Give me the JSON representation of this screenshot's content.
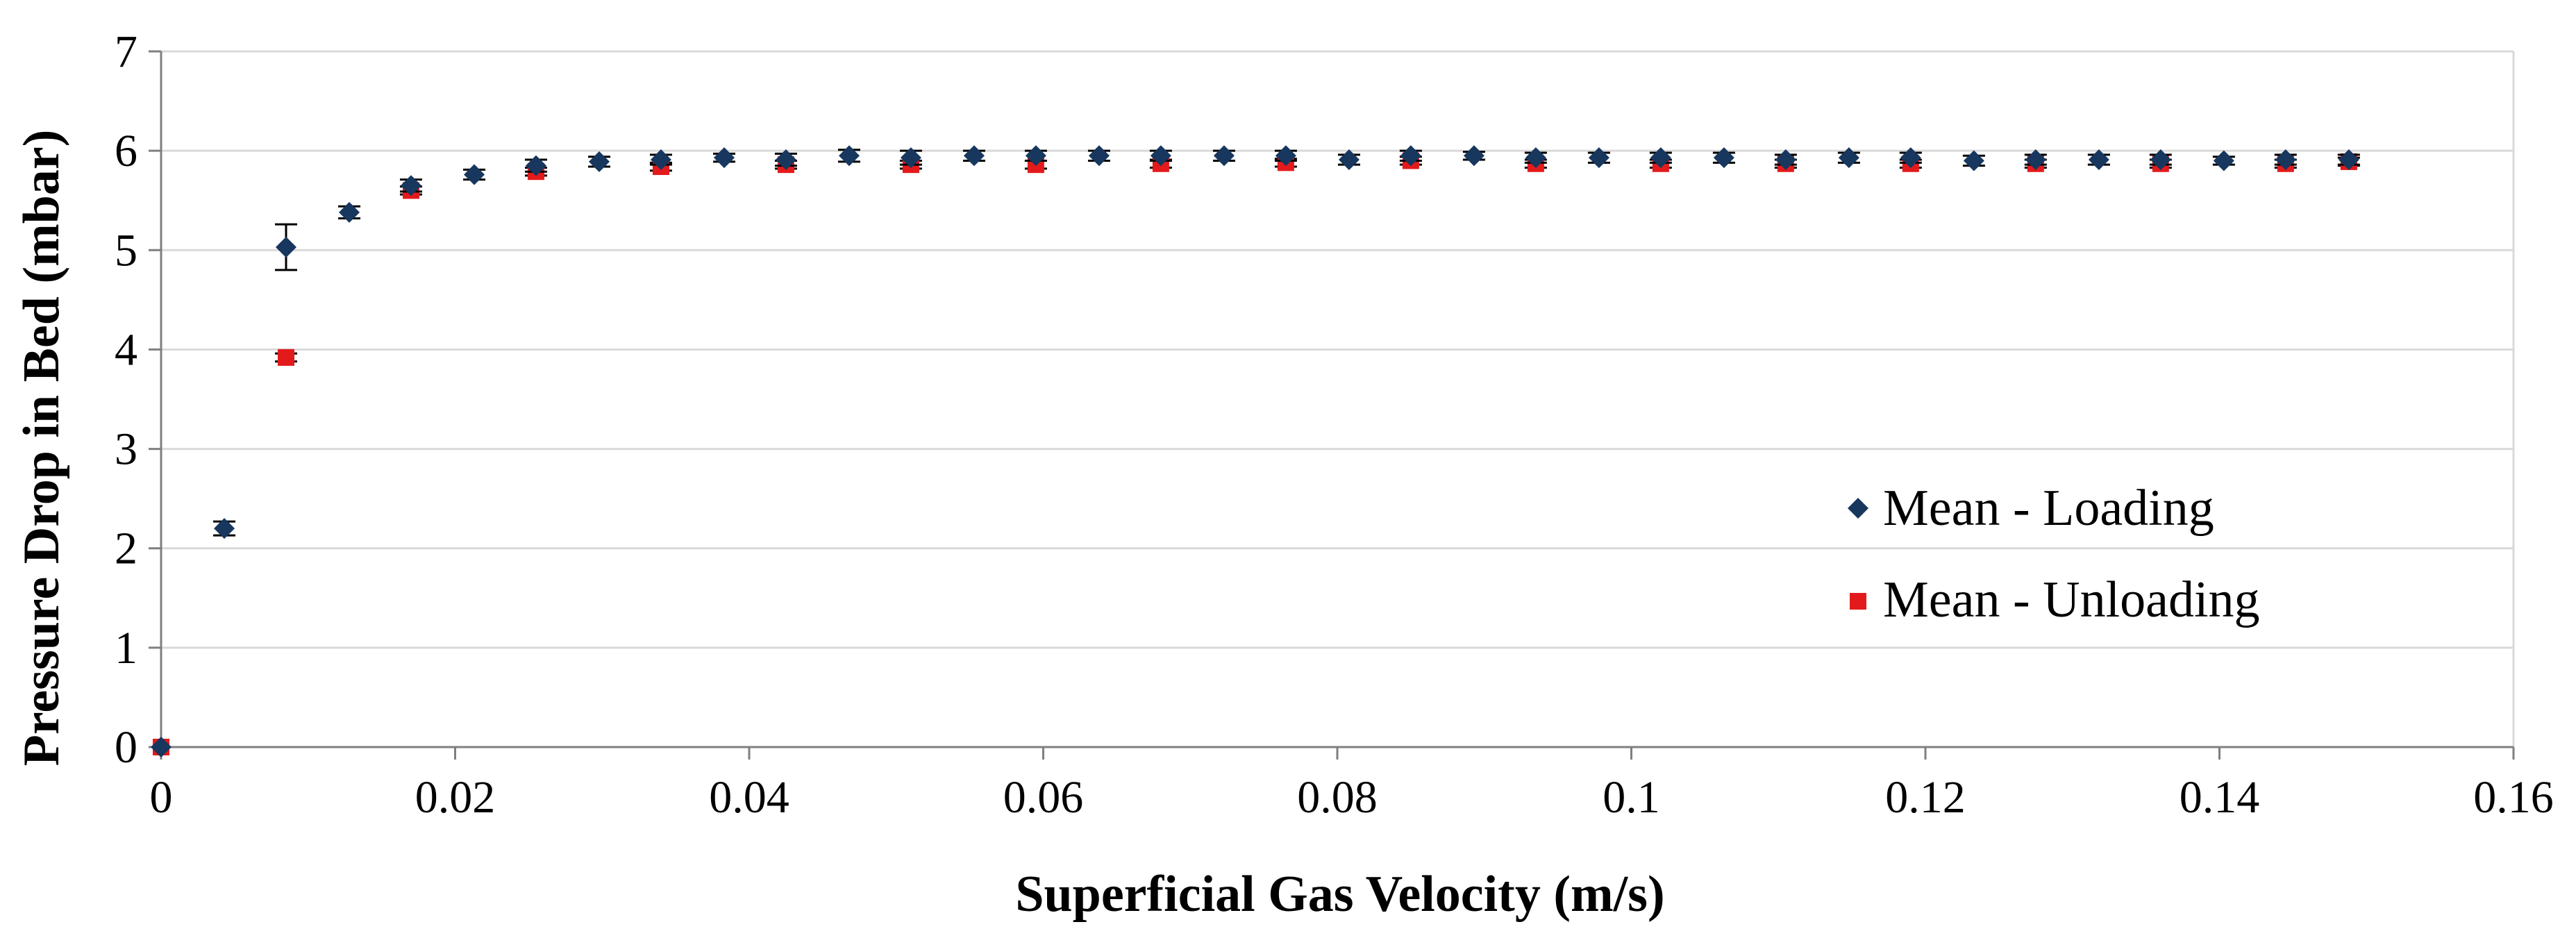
{
  "chart_data": {
    "type": "scatter",
    "title": "",
    "xlabel": "Superficial Gas Velocity (m/s)",
    "ylabel": "Pressure Drop in Bed (mbar)",
    "xlim": [
      0,
      0.16
    ],
    "ylim": [
      0,
      7
    ],
    "xticks": [
      0,
      0.02,
      0.04,
      0.06,
      0.08,
      0.1,
      0.12,
      0.14,
      0.16
    ],
    "xtick_labels": [
      "0",
      "0.02",
      "0.04",
      "0.06",
      "0.08",
      "0.1",
      "0.12",
      "0.14",
      "0.16"
    ],
    "yticks": [
      0,
      1,
      2,
      3,
      4,
      5,
      6,
      7
    ],
    "ytick_labels": [
      "0",
      "1",
      "2",
      "3",
      "4",
      "5",
      "6",
      "7"
    ],
    "grid": "horizontal",
    "legend_position": "right",
    "series": [
      {
        "name": "Mean - Loading",
        "marker": "diamond",
        "color": "#17375e",
        "x": [
          0,
          0.0043,
          0.0085,
          0.0128,
          0.017,
          0.0213,
          0.0255,
          0.0298,
          0.034,
          0.0383,
          0.0425,
          0.0468,
          0.051,
          0.0553,
          0.0595,
          0.0638,
          0.068,
          0.0723,
          0.0765,
          0.0808,
          0.085,
          0.0893,
          0.0935,
          0.0978,
          0.102,
          0.1063,
          0.1105,
          0.1148,
          0.119,
          0.1233,
          0.1275,
          0.1318,
          0.136,
          0.1403,
          0.1445,
          0.1488
        ],
        "y": [
          0,
          2.2,
          5.03,
          5.38,
          5.65,
          5.76,
          5.85,
          5.89,
          5.91,
          5.93,
          5.91,
          5.95,
          5.93,
          5.95,
          5.95,
          5.95,
          5.95,
          5.95,
          5.95,
          5.91,
          5.95,
          5.95,
          5.93,
          5.93,
          5.93,
          5.93,
          5.91,
          5.93,
          5.93,
          5.9,
          5.91,
          5.91,
          5.91,
          5.9,
          5.91,
          5.91
        ],
        "error": [
          0,
          0.07,
          0.23,
          0.06,
          0.06,
          0.05,
          0.06,
          0.05,
          0.05,
          0.04,
          0.06,
          0.06,
          0.07,
          0.05,
          0.05,
          0.05,
          0.05,
          0.05,
          0.05,
          0.05,
          0.05,
          0.04,
          0.05,
          0.05,
          0.05,
          0.05,
          0.05,
          0.05,
          0.05,
          0.05,
          0.05,
          0.05,
          0.05,
          0.04,
          0.05,
          0.05
        ]
      },
      {
        "name": "Mean - Unloading",
        "marker": "square",
        "color": "#e31a1c",
        "x": [
          0,
          0.0085,
          0.017,
          0.0255,
          0.034,
          0.0425,
          0.051,
          0.0595,
          0.068,
          0.0765,
          0.085,
          0.0935,
          0.102,
          0.1105,
          0.119,
          0.1275,
          0.136,
          0.1445,
          0.1488
        ],
        "y": [
          0,
          3.92,
          5.6,
          5.79,
          5.84,
          5.86,
          5.86,
          5.86,
          5.87,
          5.88,
          5.9,
          5.87,
          5.87,
          5.87,
          5.87,
          5.87,
          5.87,
          5.87,
          5.89
        ],
        "error": [
          0,
          0.04,
          0.04,
          0.04,
          0.04,
          0.04,
          0.04,
          0.04,
          0.04,
          0.04,
          0.04,
          0.04,
          0.04,
          0.04,
          0.04,
          0.04,
          0.04,
          0.04,
          0.04
        ]
      }
    ]
  }
}
